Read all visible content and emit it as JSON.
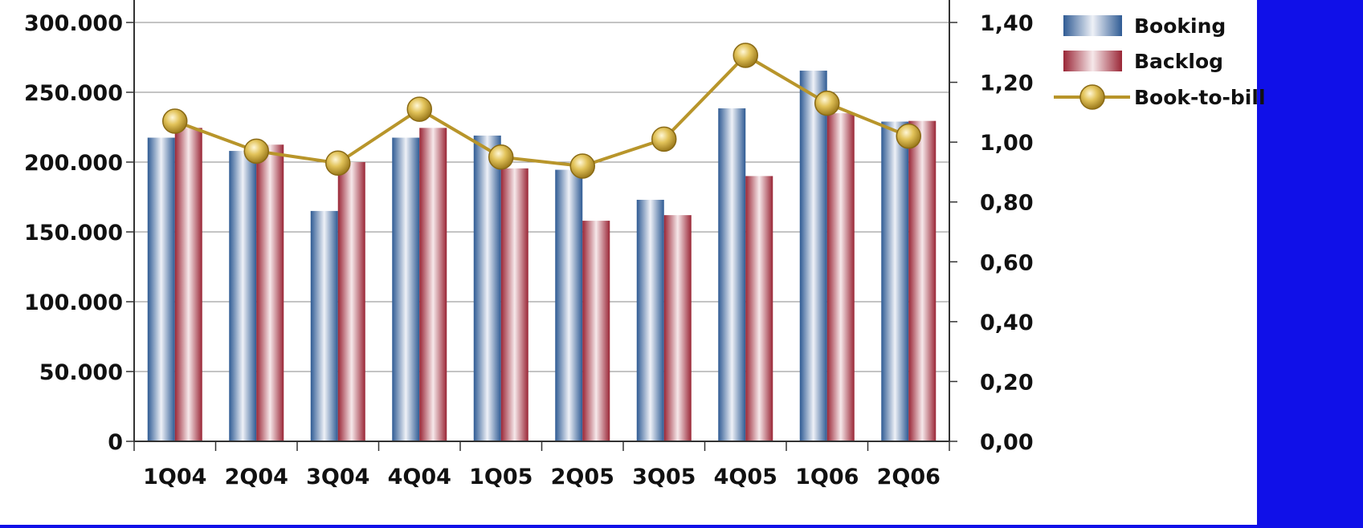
{
  "chart_data": {
    "type": "bar",
    "categories": [
      "1Q04",
      "2Q04",
      "3Q04",
      "4Q04",
      "1Q05",
      "2Q05",
      "3Q05",
      "4Q05",
      "1Q06",
      "2Q06"
    ],
    "series": [
      {
        "name": "Booking",
        "type": "bar",
        "axis": "left",
        "values": [
          217500,
          208000,
          165000,
          217500,
          219000,
          194500,
          173000,
          238500,
          265500,
          229000
        ]
      },
      {
        "name": "Backlog",
        "type": "bar",
        "axis": "left",
        "values": [
          224500,
          212500,
          200000,
          224500,
          195500,
          158000,
          162000,
          190000,
          235000,
          229500
        ]
      },
      {
        "name": "Book-to-bill",
        "type": "line",
        "axis": "right",
        "values": [
          1.07,
          0.97,
          0.93,
          1.11,
          0.95,
          0.92,
          1.01,
          1.29,
          1.13,
          1.02
        ]
      }
    ],
    "y_left": {
      "range": [
        0,
        300000
      ],
      "ticks": [
        0,
        50000,
        100000,
        150000,
        200000,
        250000,
        300000
      ],
      "tick_labels": [
        "0",
        "50.000",
        "100.000",
        "150.000",
        "200.000",
        "250.000",
        "300.000"
      ]
    },
    "y_right": {
      "range": [
        0,
        1.4
      ],
      "ticks": [
        0,
        0.2,
        0.4,
        0.6,
        0.8,
        1.0,
        1.2,
        1.4
      ],
      "tick_labels": [
        "0,00",
        "0,20",
        "0,40",
        "0,60",
        "0,80",
        "1,00",
        "1,20",
        "1,40"
      ]
    },
    "grid": true,
    "legend": {
      "position": "top-right",
      "entries": [
        "Booking",
        "Backlog",
        "Book-to-bill"
      ]
    },
    "colors": {
      "booking": "#2f5b94",
      "backlog": "#9a2636",
      "line": "#b8952a",
      "marker": "#d7b546",
      "background": "#1010e8",
      "plot_bg": "#ffffff"
    }
  }
}
